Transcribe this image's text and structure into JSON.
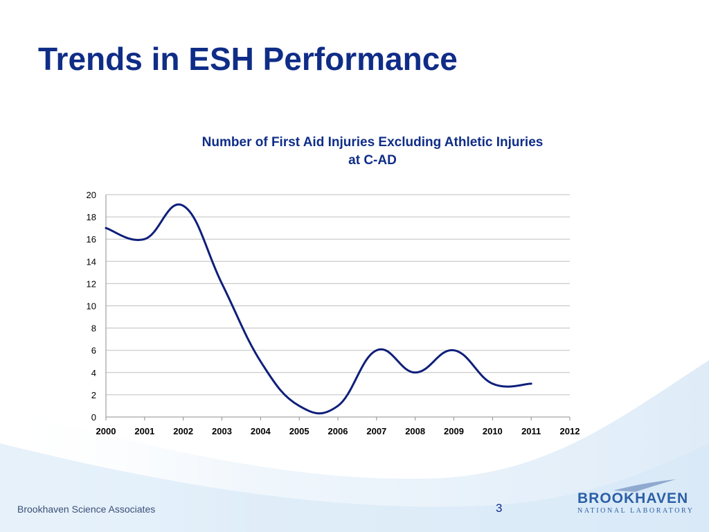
{
  "slide": {
    "title": "Trends in ESH Performance",
    "footer": "Brookhaven Science Associates",
    "page_number": "3"
  },
  "logo": {
    "name": "BROOKHAVEN",
    "subtitle": "NATIONAL LABORATORY"
  },
  "colors": {
    "title": "#0F2D87",
    "line": "#0F1F7A",
    "grid": "#BFBFBF",
    "wave": "#CFE3F5"
  },
  "chart_data": {
    "type": "line",
    "title_lines": [
      "Number of First Aid Injuries Excluding Athletic Injuries",
      "at C-AD"
    ],
    "x": [
      2000,
      2001,
      2002,
      2003,
      2004,
      2005,
      2006,
      2007,
      2008,
      2009,
      2010,
      2011
    ],
    "values": [
      17,
      16,
      19,
      12,
      5,
      1,
      1,
      6,
      4,
      6,
      3,
      3
    ],
    "x_ticks": [
      "2000",
      "2001",
      "2002",
      "2003",
      "2004",
      "2005",
      "2006",
      "2007",
      "2008",
      "2009",
      "2010",
      "2011",
      "2012"
    ],
    "y_ticks": [
      "0",
      "2",
      "4",
      "6",
      "8",
      "10",
      "12",
      "14",
      "16",
      "18",
      "20"
    ],
    "xlim": [
      2000,
      2012
    ],
    "ylim": [
      0,
      20
    ],
    "smooth": true,
    "grid": true,
    "legend": "none"
  }
}
